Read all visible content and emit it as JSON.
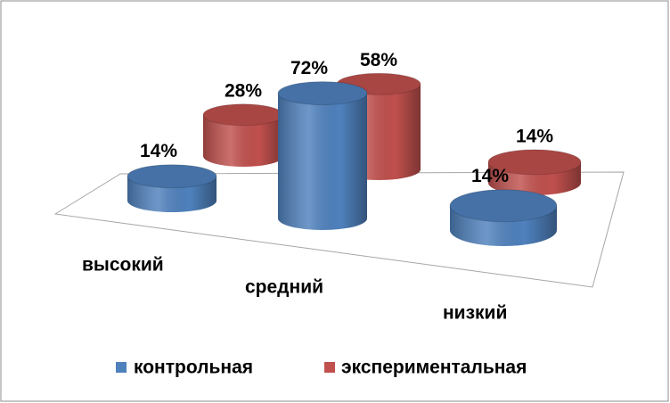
{
  "chart_data": {
    "type": "cylinder3d",
    "categories": [
      "высокий",
      "средний",
      "низкий"
    ],
    "series": [
      {
        "name": "контрольная",
        "color": "#4f81bd",
        "values": [
          14,
          72,
          14
        ],
        "value_labels": [
          "14%",
          "72%",
          "14%"
        ]
      },
      {
        "name": "экспериментальная",
        "color": "#c0504d",
        "values": [
          28,
          58,
          14
        ],
        "value_labels": [
          "28%",
          "58%",
          "14%"
        ]
      }
    ]
  }
}
